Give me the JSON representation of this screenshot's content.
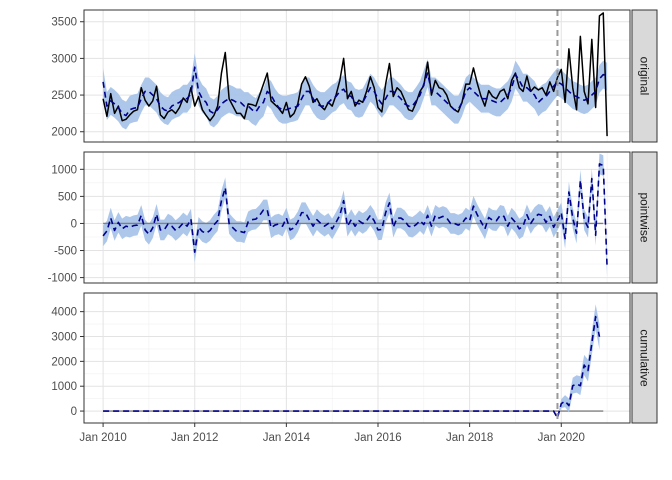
{
  "chart_data": {
    "type": "line",
    "title": "",
    "xlabel": "",
    "ylabel": "",
    "x_ticks": [
      "Jan 2010",
      "Jan 2012",
      "Jan 2014",
      "Jan 2016",
      "Jan 2018",
      "Jan 2020"
    ],
    "intervention_date": "2019-12",
    "colors": {
      "observed": "#000000",
      "predicted": "#00008b",
      "band": "#a9c4ea",
      "intervention": "#999999",
      "zero": "#808080",
      "strip": "#d9d9d9"
    },
    "months": [
      "2010-01",
      "2010-02",
      "2010-03",
      "2010-04",
      "2010-05",
      "2010-06",
      "2010-07",
      "2010-08",
      "2010-09",
      "2010-10",
      "2010-11",
      "2010-12",
      "2011-01",
      "2011-02",
      "2011-03",
      "2011-04",
      "2011-05",
      "2011-06",
      "2011-07",
      "2011-08",
      "2011-09",
      "2011-10",
      "2011-11",
      "2011-12",
      "2012-01",
      "2012-02",
      "2012-03",
      "2012-04",
      "2012-05",
      "2012-06",
      "2012-07",
      "2012-08",
      "2012-09",
      "2012-10",
      "2012-11",
      "2012-12",
      "2013-01",
      "2013-02",
      "2013-03",
      "2013-04",
      "2013-05",
      "2013-06",
      "2013-07",
      "2013-08",
      "2013-09",
      "2013-10",
      "2013-11",
      "2013-12",
      "2014-01",
      "2014-02",
      "2014-03",
      "2014-04",
      "2014-05",
      "2014-06",
      "2014-07",
      "2014-08",
      "2014-09",
      "2014-10",
      "2014-11",
      "2014-12",
      "2015-01",
      "2015-02",
      "2015-03",
      "2015-04",
      "2015-05",
      "2015-06",
      "2015-07",
      "2015-08",
      "2015-09",
      "2015-10",
      "2015-11",
      "2015-12",
      "2016-01",
      "2016-02",
      "2016-03",
      "2016-04",
      "2016-05",
      "2016-06",
      "2016-07",
      "2016-08",
      "2016-09",
      "2016-10",
      "2016-11",
      "2016-12",
      "2017-01",
      "2017-02",
      "2017-03",
      "2017-04",
      "2017-05",
      "2017-06",
      "2017-07",
      "2017-08",
      "2017-09",
      "2017-10",
      "2017-11",
      "2017-12",
      "2018-01",
      "2018-02",
      "2018-03",
      "2018-04",
      "2018-05",
      "2018-06",
      "2018-07",
      "2018-08",
      "2018-09",
      "2018-10",
      "2018-11",
      "2018-12",
      "2019-01",
      "2019-02",
      "2019-03",
      "2019-04",
      "2019-05",
      "2019-06",
      "2019-07",
      "2019-08",
      "2019-09",
      "2019-10",
      "2019-11",
      "2019-12",
      "2020-01",
      "2020-02",
      "2020-03",
      "2020-04",
      "2020-05",
      "2020-06",
      "2020-07",
      "2020-08",
      "2020-09",
      "2020-10",
      "2020-11",
      "2020-12"
    ],
    "panels": [
      {
        "label": "original",
        "ylim": [
          1860,
          3660
        ],
        "yticks": [
          2000,
          2500,
          3000,
          3500
        ],
        "observed": [
          2450,
          2210,
          2520,
          2250,
          2350,
          2150,
          2170,
          2230,
          2280,
          2300,
          2600,
          2430,
          2350,
          2420,
          2620,
          2230,
          2180,
          2270,
          2300,
          2250,
          2330,
          2460,
          2400,
          2600,
          2350,
          2480,
          2300,
          2220,
          2150,
          2220,
          2350,
          2800,
          3080,
          2450,
          2350,
          2250,
          2250,
          2180,
          2380,
          2370,
          2350,
          2500,
          2650,
          2800,
          2420,
          2370,
          2320,
          2250,
          2400,
          2200,
          2250,
          2380,
          2650,
          2750,
          2620,
          2400,
          2450,
          2350,
          2300,
          2400,
          2350,
          2500,
          2700,
          3000,
          2450,
          2550,
          2350,
          2430,
          2400,
          2550,
          2750,
          2600,
          2330,
          2270,
          2650,
          2930,
          2480,
          2600,
          2550,
          2430,
          2300,
          2280,
          2400,
          2550,
          2630,
          2950,
          2500,
          2700,
          2600,
          2580,
          2500,
          2350,
          2300,
          2270,
          2400,
          2650,
          2650,
          2870,
          2660,
          2480,
          2350,
          2560,
          2480,
          2450,
          2550,
          2580,
          2450,
          2700,
          2800,
          2600,
          2550,
          2760,
          2550,
          2610,
          2570,
          2600,
          2500,
          2680,
          2550,
          2740,
          2850,
          2400,
          3130,
          2600,
          2300,
          3300,
          2550,
          2380,
          3260,
          2330,
          3580,
          3620,
          1940
        ],
        "predicted": [
          2680,
          2350,
          2420,
          2380,
          2330,
          2250,
          2220,
          2300,
          2320,
          2330,
          2450,
          2550,
          2550,
          2500,
          2450,
          2350,
          2300,
          2280,
          2350,
          2380,
          2400,
          2450,
          2450,
          2520,
          2880,
          2550,
          2450,
          2400,
          2280,
          2250,
          2300,
          2380,
          2420,
          2450,
          2430,
          2400,
          2400,
          2350,
          2350,
          2300,
          2270,
          2350,
          2400,
          2550,
          2500,
          2400,
          2330,
          2300,
          2300,
          2320,
          2330,
          2350,
          2450,
          2550,
          2550,
          2450,
          2380,
          2350,
          2350,
          2400,
          2450,
          2480,
          2550,
          2580,
          2500,
          2480,
          2400,
          2380,
          2400,
          2500,
          2600,
          2550,
          2450,
          2380,
          2450,
          2550,
          2550,
          2500,
          2450,
          2380,
          2350,
          2350,
          2420,
          2500,
          2650,
          2800,
          2550,
          2550,
          2500,
          2450,
          2400,
          2350,
          2300,
          2300,
          2400,
          2550,
          2600,
          2550,
          2500,
          2450,
          2450,
          2450,
          2420,
          2400,
          2400,
          2450,
          2500,
          2600,
          2780,
          2700,
          2600,
          2600,
          2550,
          2500,
          2400,
          2450,
          2480,
          2550,
          2620,
          2680,
          2650,
          2600,
          2550,
          2500,
          2480,
          2450,
          2430,
          2450,
          2500,
          2550,
          2720,
          2780,
          2750
        ],
        "band_halfwidth": 190
      },
      {
        "label": "pointwise",
        "ylim": [
          -1100,
          1320
        ],
        "yticks": [
          -1000,
          -500,
          0,
          500,
          1000
        ],
        "predicted": [
          -230,
          -140,
          100,
          -130,
          20,
          -100,
          -50,
          -70,
          -40,
          -30,
          150,
          -120,
          -200,
          -80,
          170,
          -120,
          -120,
          -10,
          -50,
          -130,
          -70,
          10,
          -50,
          80,
          -530,
          -70,
          -150,
          -180,
          -130,
          -30,
          50,
          420,
          660,
          0,
          -80,
          -150,
          -150,
          -170,
          30,
          70,
          80,
          150,
          250,
          250,
          -80,
          -30,
          -10,
          -50,
          100,
          -120,
          -80,
          30,
          200,
          200,
          70,
          -50,
          70,
          0,
          -50,
          0,
          -100,
          20,
          150,
          420,
          -50,
          70,
          -50,
          50,
          0,
          50,
          150,
          50,
          -120,
          -110,
          200,
          380,
          -70,
          100,
          100,
          50,
          -50,
          -70,
          -20,
          50,
          -20,
          150,
          -50,
          150,
          100,
          130,
          100,
          0,
          0,
          -30,
          0,
          100,
          50,
          320,
          160,
          30,
          -100,
          110,
          60,
          50,
          150,
          130,
          -50,
          100,
          20,
          -100,
          -50,
          160,
          0,
          110,
          170,
          150,
          20,
          130,
          -70,
          60,
          200,
          -280,
          580,
          100,
          -180,
          800,
          70,
          -70,
          830,
          -220,
          1100,
          1070,
          -810
        ],
        "band_halfwidth": 190
      },
      {
        "label": "cumulative",
        "ylim": [
          -480,
          4750
        ],
        "yticks": [
          0,
          1000,
          2000,
          3000,
          4000
        ],
        "flat_until": "2019-12",
        "post_predicted": [
          -280,
          300,
          400,
          220,
          1020,
          1090,
          1020,
          1850,
          1630,
          2730,
          3800,
          2990
        ],
        "post_halfwidth": [
          30,
          180,
          240,
          280,
          320,
          350,
          380,
          410,
          440,
          470,
          500,
          520
        ]
      }
    ]
  }
}
